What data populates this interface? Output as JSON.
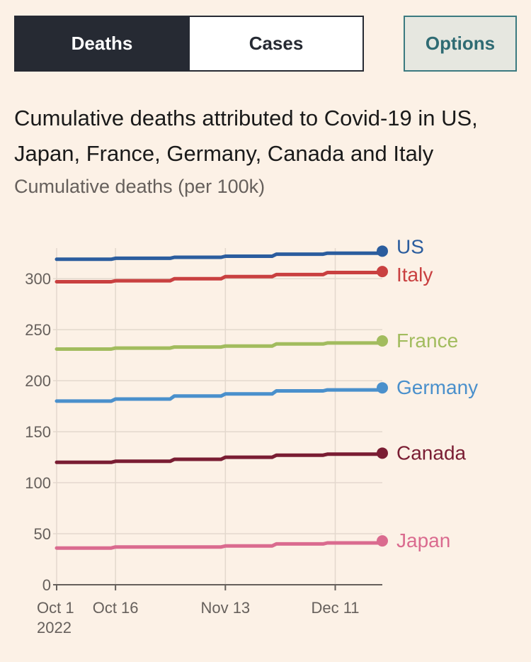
{
  "tabs": [
    {
      "label": "Deaths",
      "active": true
    },
    {
      "label": "Cases",
      "active": false
    }
  ],
  "options_label": "Options",
  "colors": {
    "background": "#fcf1e6",
    "active_tab": "#262a33",
    "options_accent": "#2f6b73"
  },
  "chart_data": {
    "type": "line",
    "title": "Cumulative deaths attributed to Covid-19 in US, Japan, France, Germany, Canada and Italy",
    "subtitle": "Cumulative deaths (per 100k)",
    "xlabel": "",
    "ylabel": "",
    "x_start": "2022-10-01",
    "x_end": "2022-12-23",
    "xlim": [
      "2022-10-01",
      "2022-12-23"
    ],
    "ylim": [
      0,
      330
    ],
    "y_ticks": [
      0,
      50,
      100,
      150,
      200,
      250,
      300
    ],
    "x_ticks": [
      {
        "date": "2022-10-01",
        "label": "Oct 1",
        "sublabel": "2022"
      },
      {
        "date": "2022-10-16",
        "label": "Oct 16",
        "sublabel": ""
      },
      {
        "date": "2022-11-13",
        "label": "Nov 13",
        "sublabel": ""
      },
      {
        "date": "2022-12-11",
        "label": "Dec 11",
        "sublabel": ""
      }
    ],
    "grid": true,
    "legend": "end-of-line labels",
    "series": [
      {
        "name": "US",
        "color": "#2b5d9e",
        "values": [
          [
            "2022-10-01",
            319
          ],
          [
            "2022-10-16",
            320
          ],
          [
            "2022-10-31",
            321
          ],
          [
            "2022-11-13",
            322
          ],
          [
            "2022-11-26",
            324
          ],
          [
            "2022-12-09",
            325
          ],
          [
            "2022-12-23",
            327
          ]
        ]
      },
      {
        "name": "Italy",
        "color": "#c94040",
        "values": [
          [
            "2022-10-01",
            297
          ],
          [
            "2022-10-16",
            298
          ],
          [
            "2022-10-31",
            300
          ],
          [
            "2022-11-13",
            302
          ],
          [
            "2022-11-26",
            304
          ],
          [
            "2022-12-09",
            306
          ],
          [
            "2022-12-23",
            307
          ]
        ]
      },
      {
        "name": "France",
        "color": "#a2bc5e",
        "values": [
          [
            "2022-10-01",
            231
          ],
          [
            "2022-10-16",
            232
          ],
          [
            "2022-10-31",
            233
          ],
          [
            "2022-11-13",
            234
          ],
          [
            "2022-11-26",
            236
          ],
          [
            "2022-12-09",
            237
          ],
          [
            "2022-12-23",
            239
          ]
        ]
      },
      {
        "name": "Germany",
        "color": "#4a90cc",
        "values": [
          [
            "2022-10-01",
            180
          ],
          [
            "2022-10-16",
            182
          ],
          [
            "2022-10-31",
            185
          ],
          [
            "2022-11-13",
            187
          ],
          [
            "2022-11-26",
            190
          ],
          [
            "2022-12-09",
            191
          ],
          [
            "2022-12-23",
            193
          ]
        ]
      },
      {
        "name": "Canada",
        "color": "#7a1d33",
        "values": [
          [
            "2022-10-01",
            120
          ],
          [
            "2022-10-16",
            121
          ],
          [
            "2022-10-31",
            123
          ],
          [
            "2022-11-13",
            125
          ],
          [
            "2022-11-26",
            127
          ],
          [
            "2022-12-09",
            128
          ],
          [
            "2022-12-23",
            129
          ]
        ]
      },
      {
        "name": "Japan",
        "color": "#da6b8f",
        "values": [
          [
            "2022-10-01",
            36
          ],
          [
            "2022-10-16",
            37
          ],
          [
            "2022-10-31",
            37
          ],
          [
            "2022-11-13",
            38
          ],
          [
            "2022-11-26",
            40
          ],
          [
            "2022-12-09",
            41
          ],
          [
            "2022-12-23",
            43
          ]
        ]
      }
    ]
  }
}
